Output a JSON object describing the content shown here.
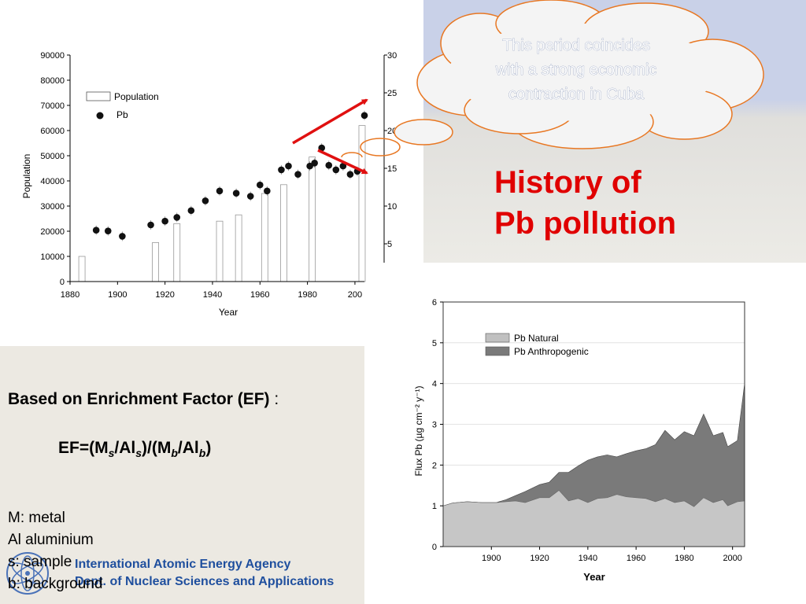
{
  "slide": {
    "title_line1": "History of",
    "title_line2": "Pb pollution",
    "callout": [
      "This period coincides",
      "with a strong economic",
      "contraction in Cuba"
    ],
    "ef_heading": "Based on Enrichment Factor (EF)",
    "ef_colon": ":",
    "ef_formula": {
      "prefix": "EF=(M",
      "sub1": "s",
      "mid1": "/Al",
      "sub2": "s",
      "mid2": ")/(M",
      "sub3": "b",
      "mid3": "/Al",
      "sub4": "b",
      "suffix": ")"
    },
    "legend_lines": [
      "M: metal",
      "Al aluminium",
      "s: sample",
      "b: background"
    ],
    "org_line1": "International Atomic Energy Agency",
    "org_line2": "Dept. of Nuclear Sciences and Applications",
    "colors": {
      "title": "#e00000",
      "callout_border": "#e87722",
      "arrow": "#e01010",
      "org": "#1f4f9e"
    }
  },
  "chart_data": [
    {
      "type": "bar",
      "xlabel": "Year",
      "ylabel": "Population",
      "xlim": [
        1880,
        2004
      ],
      "ylim": [
        0,
        90000
      ],
      "y2lim": [
        0,
        30
      ],
      "xticks": [
        "1880",
        "1900",
        "1920",
        "1940",
        "1960",
        "1980",
        "200"
      ],
      "yticks": [
        "0",
        "10000",
        "20000",
        "30000",
        "40000",
        "50000",
        "60000",
        "70000",
        "80000",
        "90000"
      ],
      "y2ticks": [
        "5",
        "10",
        "15",
        "20",
        "25",
        "30"
      ],
      "legend": [
        "Population",
        "Pb"
      ],
      "series": [
        {
          "name": "Population",
          "kind": "bar",
          "x": [
            1885,
            1916,
            1925,
            1943,
            1951,
            1962,
            1970,
            1982,
            2003
          ],
          "values": [
            10000,
            15500,
            23000,
            24000,
            26500,
            35000,
            38500,
            49500,
            62000
          ]
        },
        {
          "name": "Pb",
          "kind": "scatter",
          "x": [
            1891,
            1896,
            1902,
            1914,
            1920,
            1925,
            1931,
            1937,
            1943,
            1950,
            1956,
            1960,
            1963,
            1969,
            1972,
            1976,
            1981,
            1983,
            1986,
            1989,
            1992,
            1995,
            1998,
            2001,
            2004
          ],
          "values": [
            6.8,
            6.7,
            6.0,
            7.5,
            8.0,
            8.5,
            9.4,
            10.7,
            12.0,
            11.7,
            11.3,
            12.8,
            12.0,
            14.8,
            15.3,
            14.2,
            15.3,
            15.7,
            17.7,
            15.4,
            14.8,
            15.3,
            14.2,
            14.6,
            22.0
          ]
        }
      ],
      "annotations": [
        "trend arrow up to 2004",
        "trend arrow down through 1990s"
      ]
    },
    {
      "type": "area",
      "xlabel": "Year",
      "ylabel": "Flux Pb (µg cm⁻² y⁻¹)",
      "xlim": [
        1880,
        2005
      ],
      "ylim": [
        0,
        6
      ],
      "xticks": [
        "1900",
        "1920",
        "1940",
        "1960",
        "1980",
        "2000"
      ],
      "yticks": [
        "0",
        "1",
        "2",
        "3",
        "4",
        "5",
        "6"
      ],
      "legend": [
        "Pb Natural",
        "Pb Anthropogenic"
      ],
      "x": [
        1880,
        1884,
        1890,
        1896,
        1902,
        1906,
        1910,
        1914,
        1920,
        1924,
        1928,
        1932,
        1936,
        1940,
        1944,
        1948,
        1952,
        1956,
        1960,
        1964,
        1968,
        1972,
        1976,
        1980,
        1984,
        1988,
        1992,
        1996,
        1998,
        2002,
        2005
      ],
      "series": [
        {
          "name": "Pb Natural",
          "values": [
            1.0,
            1.07,
            1.1,
            1.08,
            1.08,
            1.1,
            1.12,
            1.08,
            1.2,
            1.2,
            1.38,
            1.12,
            1.18,
            1.08,
            1.18,
            1.2,
            1.28,
            1.22,
            1.2,
            1.18,
            1.1,
            1.18,
            1.08,
            1.12,
            0.98,
            1.2,
            1.08,
            1.15,
            1.0,
            1.1,
            1.12
          ]
        },
        {
          "name": "Pb Anthropogenic",
          "values": [
            1.0,
            1.07,
            1.1,
            1.08,
            1.08,
            1.15,
            1.25,
            1.35,
            1.52,
            1.58,
            1.82,
            1.82,
            1.98,
            2.12,
            2.2,
            2.25,
            2.2,
            2.28,
            2.35,
            2.4,
            2.5,
            2.85,
            2.62,
            2.82,
            2.72,
            3.25,
            2.72,
            2.8,
            2.45,
            2.6,
            4.0
          ]
        }
      ]
    }
  ]
}
